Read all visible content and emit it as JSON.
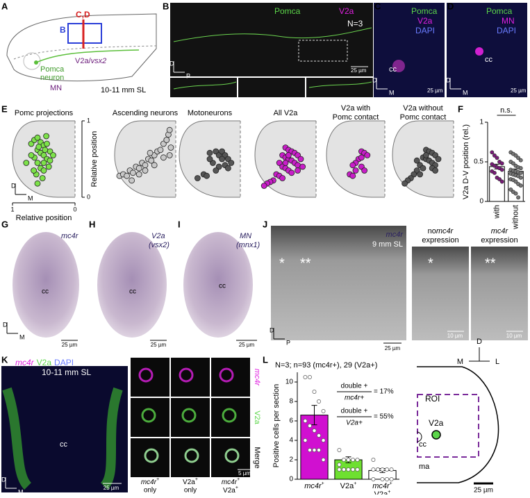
{
  "A": {
    "label": "A",
    "cd": "C,D",
    "b": "B",
    "v2a": "V2a/",
    "vsx2": "vsx2",
    "pomca": "Pomca",
    "neuron": "neuron",
    "mn": "MN",
    "size": "10-11 mm SL"
  },
  "B": {
    "label": "B",
    "pomca": "Pomca",
    "v2a": "V2a",
    "n": "N=3",
    "d": "D",
    "p": "P",
    "scale": "25 µm"
  },
  "C": {
    "label": "C",
    "pomca": "Pomca",
    "v2a": "V2a",
    "dapi": "DAPI",
    "cc": "cc",
    "d": "D",
    "m": "M",
    "scale": "25 µm"
  },
  "D": {
    "label": "D",
    "pomca": "Pomca",
    "mn": "MN",
    "dapi": "DAPI",
    "cc": "cc",
    "d": "D",
    "m": "M",
    "scale": "25 µm"
  },
  "E": {
    "label": "E",
    "type": "scatter",
    "ylabel": "Relative position",
    "xlabel": "Relative position",
    "xticks": [
      1,
      0
    ],
    "yticks": [
      1,
      0
    ],
    "d": "D",
    "m": "M",
    "plots": [
      {
        "title": [
          "Pomc projections"
        ],
        "color": "#7de24a",
        "x": [
          0.7,
          0.65,
          0.6,
          0.55,
          0.5,
          0.45,
          0.4,
          0.6,
          0.55,
          0.5,
          0.45,
          0.65,
          0.6,
          0.5,
          0.4,
          0.35,
          0.55,
          0.5,
          0.62,
          0.48,
          0.42,
          0.7,
          0.58,
          0.52,
          0.6,
          0.78,
          0.66,
          0.46
        ],
        "y": [
          0.7,
          0.75,
          0.78,
          0.72,
          0.68,
          0.7,
          0.6,
          0.62,
          0.58,
          0.55,
          0.5,
          0.52,
          0.45,
          0.45,
          0.48,
          0.55,
          0.38,
          0.35,
          0.3,
          0.62,
          0.4,
          0.55,
          0.66,
          0.25,
          0.18,
          0.45,
          0.35,
          0.8
        ]
      },
      {
        "title": [
          "Ascending neurons"
        ],
        "color": "#c8c8c8",
        "x": [
          0.92,
          0.86,
          0.8,
          0.75,
          0.7,
          0.65,
          0.6,
          0.55,
          0.5,
          0.45,
          0.4,
          0.35,
          0.3,
          0.25,
          0.2,
          0.15,
          0.12,
          0.1,
          0.08,
          0.6,
          0.5,
          0.35,
          0.2,
          0.1,
          0.72,
          0.42
        ],
        "y": [
          0.28,
          0.3,
          0.28,
          0.35,
          0.32,
          0.4,
          0.38,
          0.45,
          0.42,
          0.5,
          0.48,
          0.55,
          0.6,
          0.62,
          0.7,
          0.75,
          0.82,
          0.88,
          0.65,
          0.3,
          0.35,
          0.42,
          0.52,
          0.55,
          0.22,
          0.58
        ]
      },
      {
        "title": [
          "Motoneurons"
        ],
        "color": "#555555",
        "x": [
          0.5,
          0.4,
          0.35,
          0.3,
          0.25,
          0.2,
          0.15,
          0.3,
          0.25,
          0.45,
          0.6,
          0.7,
          0.55,
          0.35,
          0.2,
          0.4,
          0.5
        ],
        "y": [
          0.58,
          0.6,
          0.55,
          0.6,
          0.55,
          0.5,
          0.45,
          0.5,
          0.42,
          0.45,
          0.3,
          0.25,
          0.28,
          0.4,
          0.38,
          0.35,
          0.5
        ]
      },
      {
        "title": [
          "All V2a"
        ],
        "color": "#c81ec8",
        "x": [
          0.5,
          0.45,
          0.4,
          0.35,
          0.3,
          0.25,
          0.55,
          0.5,
          0.45,
          0.4,
          0.35,
          0.3,
          0.6,
          0.55,
          0.5,
          0.45,
          0.4,
          0.65,
          0.6,
          0.55,
          0.7,
          0.75,
          0.8,
          0.85,
          0.3,
          0.22,
          0.45,
          0.5
        ],
        "y": [
          0.65,
          0.62,
          0.6,
          0.58,
          0.55,
          0.5,
          0.55,
          0.52,
          0.5,
          0.48,
          0.45,
          0.42,
          0.45,
          0.4,
          0.38,
          0.35,
          0.32,
          0.3,
          0.28,
          0.25,
          0.22,
          0.2,
          0.18,
          0.15,
          0.35,
          0.4,
          0.55,
          0.45
        ]
      },
      {
        "title": [
          "V2a with",
          "Pomc contact"
        ],
        "color": "#c81ec8",
        "x": [
          0.4,
          0.35,
          0.3,
          0.45,
          0.5,
          0.55,
          0.4,
          0.35,
          0.6,
          0.55,
          0.5,
          0.4
        ],
        "y": [
          0.6,
          0.58,
          0.55,
          0.5,
          0.45,
          0.42,
          0.4,
          0.35,
          0.3,
          0.28,
          0.35,
          0.52
        ]
      },
      {
        "title": [
          "V2a without",
          "Pomc contact"
        ],
        "color": "#555555",
        "x": [
          0.45,
          0.4,
          0.35,
          0.3,
          0.25,
          0.5,
          0.45,
          0.4,
          0.35,
          0.3,
          0.55,
          0.5,
          0.6,
          0.65,
          0.7,
          0.75,
          0.8,
          0.45,
          0.35,
          0.55,
          0.6,
          0.3
        ],
        "y": [
          0.62,
          0.6,
          0.58,
          0.55,
          0.5,
          0.52,
          0.5,
          0.48,
          0.45,
          0.42,
          0.42,
          0.38,
          0.35,
          0.3,
          0.25,
          0.22,
          0.18,
          0.55,
          0.38,
          0.3,
          0.48,
          0.35
        ]
      }
    ]
  },
  "F": {
    "label": "F",
    "type": "bar",
    "ylabel": "V2a D-V position (rel.)",
    "ns": "n.s.",
    "categories": [
      "with",
      "without"
    ],
    "values": [
      0.44,
      0.38
    ],
    "errors": [
      0.03,
      0.03
    ],
    "colors": [
      "#7a1a7a",
      "#777777"
    ],
    "points": [
      [
        0.62,
        0.58,
        0.55,
        0.5,
        0.48,
        0.47,
        0.45,
        0.43,
        0.42,
        0.4,
        0.38,
        0.36,
        0.3,
        0.28,
        0.25
      ],
      [
        0.62,
        0.6,
        0.58,
        0.55,
        0.52,
        0.5,
        0.48,
        0.45,
        0.43,
        0.42,
        0.4,
        0.39,
        0.38,
        0.37,
        0.36,
        0.35,
        0.34,
        0.33,
        0.32,
        0.3,
        0.28,
        0.27,
        0.25,
        0.22,
        0.2,
        0.15,
        0.12,
        0.1,
        0.05
      ]
    ],
    "ylim": [
      0,
      1
    ],
    "yticks": [
      0,
      0.5,
      1
    ]
  },
  "G": {
    "label": "G",
    "gene": "mc4r",
    "cc": "cc",
    "d": "D",
    "m": "M",
    "scale": "25 µm"
  },
  "H": {
    "label": "H",
    "name": "V2a",
    "gene": "(vsx2)",
    "cc": "cc",
    "scale": "25 µm"
  },
  "I": {
    "label": "I",
    "name": "MN",
    "gene": "(mnx1)",
    "cc": "cc",
    "scale": "25 µm"
  },
  "J": {
    "label": "J",
    "gene": "mc4r",
    "size": "9 mm SL",
    "star1": "*",
    "star2": "**",
    "d": "D",
    "p": "P",
    "scale": "25 µm",
    "no": "no",
    "gene2": "mc4r",
    "expr1": "expression",
    "star3": "*",
    "gene3": "mc4r",
    "expr2": "expression",
    "star4": "**",
    "scale2": "10 µm",
    "scale3": "10 µm"
  },
  "K": {
    "label": "K",
    "gene": "mc4r",
    "v2a": "V2a",
    "dapi": "DAPI",
    "size": "10-11 mm SL",
    "cc": "cc",
    "d": "D",
    "m": "M",
    "scale": "25 µm",
    "rows": [
      "mc4r",
      "V2a",
      "Merge"
    ],
    "scale2": "5 µm",
    "cols": [
      {
        "a": "mc4r",
        "sup": "+",
        "b": "only"
      },
      {
        "a": "V2a",
        "sup": "+",
        "b": "only"
      },
      {
        "a": "mc4r",
        "sup": "+",
        "c": "V2a",
        "sup2": "+"
      }
    ]
  },
  "L": {
    "label": "L",
    "type": "bar",
    "note": "N=3; n=93 (mc4r+), 29 (V2a+)",
    "ylabel": "Positive cells per section",
    "categories": [
      {
        "name": "mc4r",
        "sup": "+"
      },
      {
        "name": "V2a",
        "sup": "+"
      },
      {
        "name": "mc4r",
        "sup": "+",
        "name2": "V2a",
        "sup2": "+"
      }
    ],
    "values": [
      6.6,
      2.0,
      0.9
    ],
    "errors": [
      1.0,
      0.3,
      0.2
    ],
    "colors": [
      "#d010d0",
      "#6ee030",
      "#ffffff"
    ],
    "points": [
      [
        10.5,
        10.5,
        9,
        8,
        7,
        6,
        5.5,
        5,
        4.5,
        4,
        4,
        3,
        3,
        3,
        2
      ],
      [
        3,
        2,
        2,
        2,
        2,
        1.5,
        1,
        1,
        1,
        1,
        1,
        1
      ],
      [
        2,
        1,
        1,
        1,
        1,
        1,
        1,
        0,
        0,
        0,
        0
      ]
    ],
    "ylim": [
      0,
      11
    ],
    "yticks": [
      0,
      2,
      4,
      6,
      8,
      10
    ],
    "eq": [
      {
        "num": "double +",
        "den": "mc4r+",
        "res": "= 17%"
      },
      {
        "num": "double +",
        "den": "V2a+",
        "res": "= 55%"
      }
    ],
    "schematic": {
      "d": "D",
      "m": "M",
      "l": "L",
      "roi": "ROI",
      "v2a": "V2a",
      "cc": "cc",
      "ma": "ma",
      "scale": "25 µm"
    }
  }
}
